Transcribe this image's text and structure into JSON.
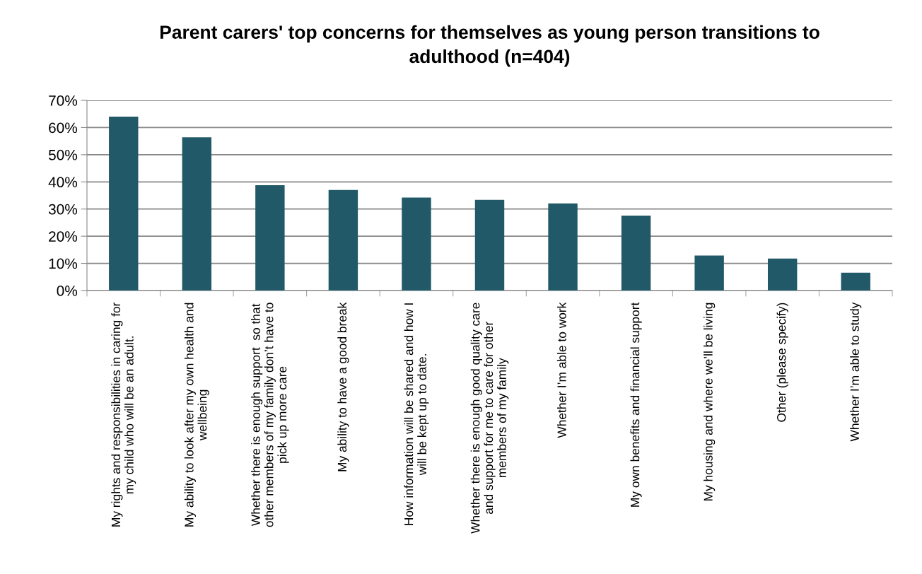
{
  "chart_data": {
    "type": "bar",
    "title": "Parent carers' top concerns for themselves as young person transitions to\nadulthood (n=404)",
    "categories": [
      "My rights and responsibilities in caring for\nmy child who will be an adult.",
      "My ability to look after my own health and\nwellbeing",
      "Whether there is enough support  so that\nother members of my family don’t have to\npick up more care",
      "My ability to have a good break",
      "How information will be shared and how I\nwill be kept up to date.",
      "Whether there is enough good quality care\nand support for me to care for other\nmembers of my family",
      "Whether I’m able to work",
      "My own benefits and financial support",
      "My housing and where we’ll be living",
      "Other (please specify)",
      "Whether I’m able to study"
    ],
    "values": [
      64.0,
      56.4,
      38.8,
      37.0,
      34.2,
      33.4,
      32.1,
      27.6,
      12.9,
      11.8,
      6.6
    ],
    "color": "#215968",
    "ylim": [
      0,
      70
    ],
    "yticks": [
      {
        "value": 0,
        "label": "0%"
      },
      {
        "value": 10,
        "label": "10%"
      },
      {
        "value": 20,
        "label": "20%"
      },
      {
        "value": 30,
        "label": "30%"
      },
      {
        "value": 40,
        "label": "40%"
      },
      {
        "value": 50,
        "label": "50%"
      },
      {
        "value": 60,
        "label": "60%"
      },
      {
        "value": 70,
        "label": "70%"
      }
    ],
    "grid": "y"
  }
}
